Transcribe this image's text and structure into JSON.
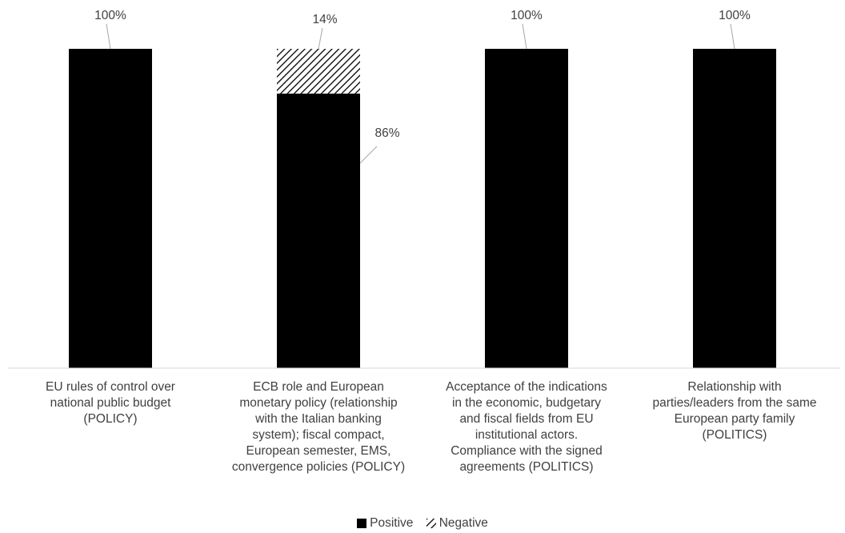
{
  "chart_data": {
    "type": "bar",
    "stacked": true,
    "percent_stacked": true,
    "categories": [
      "EU rules of control over national public budget (POLICY)",
      "ECB role and European monetary policy (relationship with the Italian banking system); fiscal compact, European semester, EMS, convergence policies (POLICY)",
      "Acceptance of the indications in the economic, budgetary and fiscal fields from EU institutional actors. Compliance with the signed agreements (POLITICS)",
      "Relationship with parties/leaders from the same European party family (POLITICS)"
    ],
    "category_lines": [
      [
        "EU rules of control over",
        "national public budget",
        "(POLICY)"
      ],
      [
        "ECB role and European",
        "monetary policy (relationship",
        "with the Italian banking",
        "system); fiscal compact,",
        "European semester, EMS,",
        "convergence policies (POLICY)"
      ],
      [
        "Acceptance of the indications",
        "in the economic, budgetary",
        "and fiscal fields from EU",
        "institutional actors.",
        "Compliance with the signed",
        "agreements (POLITICS)"
      ],
      [
        "Relationship with",
        "parties/leaders from the same",
        "European party family",
        "(POLITICS)"
      ]
    ],
    "series": [
      {
        "name": "Positive",
        "values": [
          100,
          86,
          100,
          100
        ],
        "labels": [
          "100%",
          "86%",
          "100%",
          "100%"
        ],
        "color": "#000000",
        "pattern": "solid"
      },
      {
        "name": "Negative",
        "values": [
          0,
          14,
          0,
          0
        ],
        "labels": [
          "",
          "14%",
          "",
          ""
        ],
        "color": "#000000",
        "pattern": "diagonal-hatch"
      }
    ],
    "ylim": [
      0,
      100
    ],
    "grid": false,
    "legend": {
      "position": "bottom",
      "entries": [
        "Positive",
        "Negative"
      ]
    },
    "title": "",
    "xlabel": "",
    "ylabel": ""
  }
}
